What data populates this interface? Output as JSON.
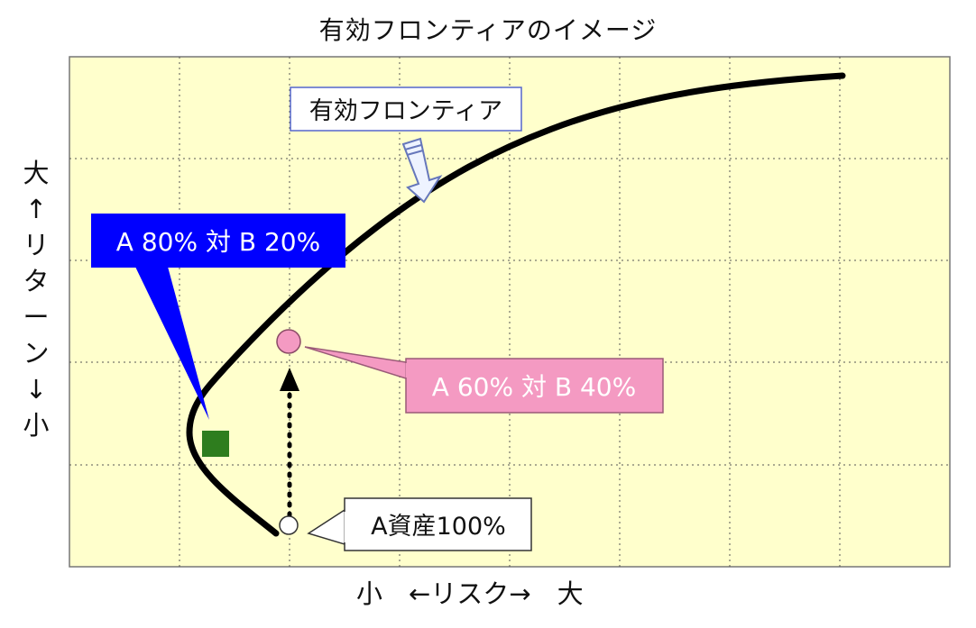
{
  "title": "有効フロンティアのイメージ",
  "y_axis_label": "大↑リターン↓小",
  "x_axis_label": "小　←リスク→　大",
  "callouts": {
    "frontier": "有効フロンティア",
    "a80_b20": "A 80% 対 B 20%",
    "a60_b40": "A 60% 対 B 40%",
    "a100": "A資産100%"
  },
  "colors": {
    "plot_background": "#FFFFCC",
    "frontier_line": "#000000",
    "a80_callout": "#0000FF",
    "a60_callout": "#F49AC2",
    "a80_marker": "#2E7D1E",
    "a60_marker": "#F49AC2"
  }
}
